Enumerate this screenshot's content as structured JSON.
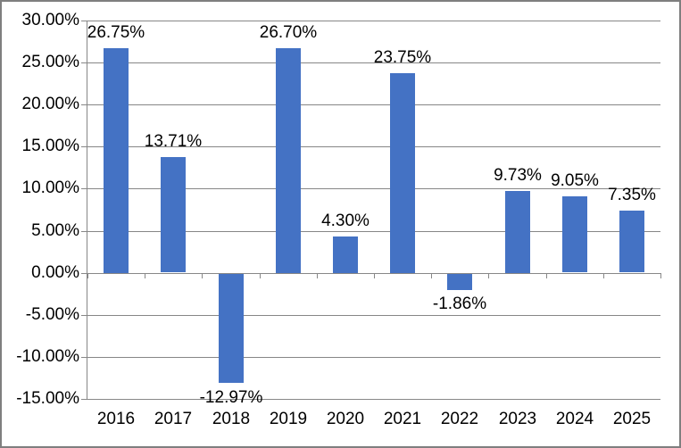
{
  "chart_data": {
    "type": "bar",
    "title": "",
    "xlabel": "",
    "ylabel": "",
    "categories": [
      "2016",
      "2017",
      "2018",
      "2019",
      "2020",
      "2021",
      "2022",
      "2023",
      "2024",
      "2025"
    ],
    "values": [
      26.75,
      13.71,
      -12.97,
      26.7,
      4.3,
      23.75,
      -1.86,
      9.73,
      9.05,
      7.35
    ],
    "data_labels": [
      "26.75%",
      "13.71%",
      "-12.97%",
      "26.70%",
      "4.30%",
      "23.75%",
      "-1.86%",
      "9.73%",
      "9.05%",
      "7.35%"
    ],
    "ytick_labels": [
      "30.00%",
      "25.00%",
      "20.00%",
      "15.00%",
      "10.00%",
      "5.00%",
      "0.00%",
      "-5.00%",
      "-10.00%",
      "-15.00%"
    ],
    "ytick_values": [
      30,
      25,
      20,
      15,
      10,
      5,
      0,
      -5,
      -10,
      -15
    ],
    "ylim": [
      -15,
      30
    ],
    "ytick_step": 5,
    "grid": true,
    "legend": false,
    "colors": {
      "bar": "#4472C4",
      "gridline": "#878787",
      "axis": "#878787",
      "text": "#000000",
      "frame_border": "#7F7F7F",
      "background": "#FFFFFF"
    }
  }
}
